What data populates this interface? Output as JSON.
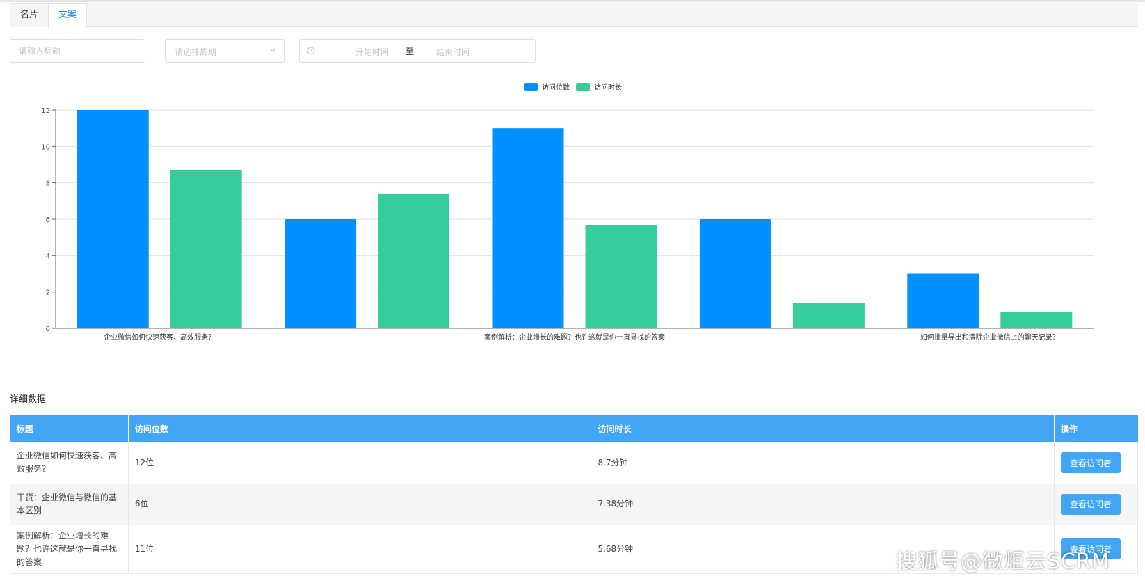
{
  "tabs": [
    {
      "label": "名片",
      "active": false
    },
    {
      "label": "文案",
      "active": true
    }
  ],
  "filters": {
    "title_placeholder": "请输入标题",
    "period_placeholder": "请选择周期",
    "date_start_placeholder": "开始时间",
    "date_separator": "至",
    "date_end_placeholder": "结束时间"
  },
  "chart_data": {
    "type": "bar",
    "categories": [
      "企业微信如何快速获客、高效服务？",
      "干货：企业微信与微信的基本区别",
      "案例解析：企业增长的难题？也许这就是你一直寻找的答案",
      "",
      "如何批量导出和清除企业微信上的聊天记录？"
    ],
    "visible_category_labels": [
      "企业微信如何快速获客、高效服务？",
      "",
      "案例解析：企业增长的难题？也许这就是你一直寻找的答案",
      "",
      "如何批量导出和清除企业微信上的聊天记录？"
    ],
    "series": [
      {
        "name": "访问位数",
        "color": "#0090ff",
        "values": [
          12,
          6,
          11,
          6,
          3
        ]
      },
      {
        "name": "访问时长",
        "color": "#36cc9e",
        "values": [
          8.7,
          7.38,
          5.68,
          1.4,
          0.9
        ]
      }
    ],
    "yticks": [
      0,
      2,
      4,
      6,
      8,
      10,
      12
    ],
    "ylim": [
      0,
      12
    ],
    "grid": true,
    "legend_position": "top-center"
  },
  "detail": {
    "section_title": "详细数据",
    "columns": [
      "标题",
      "访问位数",
      "访问时长",
      "操作"
    ],
    "rows": [
      {
        "title": "企业微信如何快速获客、高效服务？",
        "visits": "12位",
        "duration": "8.7分钟",
        "action": "查看访问者"
      },
      {
        "title": "干货：企业微信与微信的基本区别",
        "visits": "6位",
        "duration": "7.38分钟",
        "action": "查看访问者"
      },
      {
        "title": "案例解析：企业增长的难题？也许这就是你一直寻找的答案",
        "visits": "11位",
        "duration": "5.68分钟",
        "action": "查看访问者"
      }
    ]
  },
  "watermark": "搜狐号@微炬云SCRM",
  "icons": {
    "select": "chevron-down-icon",
    "date": "clock-icon"
  }
}
